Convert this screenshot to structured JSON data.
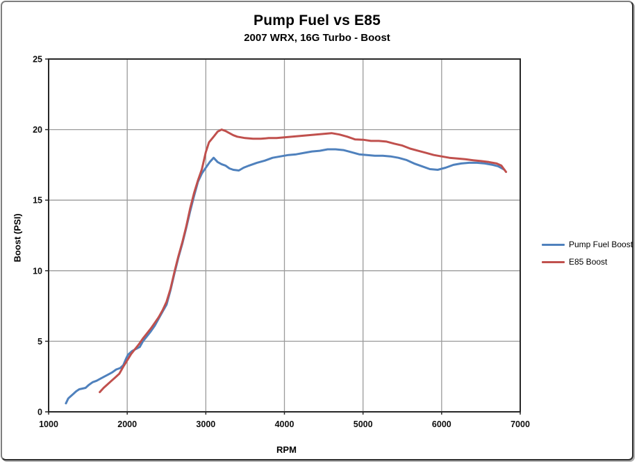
{
  "chart": {
    "title": "Pump Fuel vs E85",
    "subtitle": "2007 WRX, 16G Turbo -  Boost"
  },
  "chart_data": {
    "type": "line",
    "title": "Pump Fuel vs E85",
    "subtitle": "2007 WRX, 16G Turbo -  Boost",
    "xlabel": "RPM",
    "ylabel": "Boost (PSI)",
    "xlim": [
      1000,
      7000
    ],
    "ylim": [
      0,
      25
    ],
    "x_ticks": [
      1000,
      2000,
      3000,
      4000,
      5000,
      6000,
      7000
    ],
    "y_ticks": [
      0,
      5,
      10,
      15,
      20,
      25
    ],
    "grid": true,
    "legend_position": "right-outside",
    "gridline_color": "#9A9A9A",
    "axis_color": "#262626",
    "series": [
      {
        "name": "Pump Fuel Boost",
        "color": "#4F81BD",
        "points": [
          [
            1220,
            0.6
          ],
          [
            1250,
            0.95
          ],
          [
            1280,
            1.1
          ],
          [
            1310,
            1.25
          ],
          [
            1350,
            1.45
          ],
          [
            1390,
            1.6
          ],
          [
            1430,
            1.65
          ],
          [
            1470,
            1.7
          ],
          [
            1510,
            1.9
          ],
          [
            1560,
            2.1
          ],
          [
            1610,
            2.2
          ],
          [
            1660,
            2.35
          ],
          [
            1710,
            2.5
          ],
          [
            1760,
            2.65
          ],
          [
            1810,
            2.8
          ],
          [
            1860,
            3.0
          ],
          [
            1910,
            3.1
          ],
          [
            1950,
            3.3
          ],
          [
            1980,
            3.7
          ],
          [
            2010,
            4.05
          ],
          [
            2060,
            4.3
          ],
          [
            2110,
            4.45
          ],
          [
            2160,
            4.6
          ],
          [
            2200,
            5.0
          ],
          [
            2250,
            5.35
          ],
          [
            2300,
            5.7
          ],
          [
            2350,
            6.1
          ],
          [
            2400,
            6.6
          ],
          [
            2450,
            7.1
          ],
          [
            2500,
            7.6
          ],
          [
            2550,
            8.6
          ],
          [
            2600,
            9.8
          ],
          [
            2650,
            10.9
          ],
          [
            2700,
            11.9
          ],
          [
            2750,
            13.0
          ],
          [
            2800,
            14.2
          ],
          [
            2850,
            15.3
          ],
          [
            2900,
            16.3
          ],
          [
            2950,
            16.9
          ],
          [
            3000,
            17.3
          ],
          [
            3050,
            17.7
          ],
          [
            3100,
            18.0
          ],
          [
            3150,
            17.7
          ],
          [
            3200,
            17.55
          ],
          [
            3250,
            17.45
          ],
          [
            3300,
            17.25
          ],
          [
            3350,
            17.15
          ],
          [
            3420,
            17.1
          ],
          [
            3480,
            17.3
          ],
          [
            3550,
            17.45
          ],
          [
            3650,
            17.65
          ],
          [
            3750,
            17.8
          ],
          [
            3850,
            18.0
          ],
          [
            3950,
            18.1
          ],
          [
            4050,
            18.2
          ],
          [
            4150,
            18.25
          ],
          [
            4250,
            18.35
          ],
          [
            4350,
            18.45
          ],
          [
            4450,
            18.5
          ],
          [
            4550,
            18.6
          ],
          [
            4650,
            18.6
          ],
          [
            4750,
            18.55
          ],
          [
            4850,
            18.4
          ],
          [
            4950,
            18.25
          ],
          [
            5050,
            18.2
          ],
          [
            5150,
            18.15
          ],
          [
            5250,
            18.15
          ],
          [
            5350,
            18.1
          ],
          [
            5450,
            18.0
          ],
          [
            5550,
            17.85
          ],
          [
            5650,
            17.6
          ],
          [
            5750,
            17.4
          ],
          [
            5850,
            17.2
          ],
          [
            5950,
            17.15
          ],
          [
            6050,
            17.3
          ],
          [
            6150,
            17.5
          ],
          [
            6250,
            17.6
          ],
          [
            6350,
            17.65
          ],
          [
            6450,
            17.65
          ],
          [
            6550,
            17.6
          ],
          [
            6650,
            17.5
          ],
          [
            6720,
            17.4
          ],
          [
            6800,
            17.15
          ]
        ]
      },
      {
        "name": "E85 Boost",
        "color": "#C0504D",
        "points": [
          [
            1650,
            1.4
          ],
          [
            1700,
            1.7
          ],
          [
            1750,
            1.95
          ],
          [
            1800,
            2.2
          ],
          [
            1850,
            2.45
          ],
          [
            1900,
            2.7
          ],
          [
            1950,
            3.2
          ],
          [
            2000,
            3.65
          ],
          [
            2050,
            4.1
          ],
          [
            2100,
            4.45
          ],
          [
            2150,
            4.8
          ],
          [
            2200,
            5.2
          ],
          [
            2250,
            5.55
          ],
          [
            2300,
            5.9
          ],
          [
            2350,
            6.3
          ],
          [
            2400,
            6.7
          ],
          [
            2450,
            7.2
          ],
          [
            2500,
            7.8
          ],
          [
            2550,
            8.7
          ],
          [
            2600,
            9.9
          ],
          [
            2650,
            11.0
          ],
          [
            2700,
            12.0
          ],
          [
            2750,
            13.1
          ],
          [
            2800,
            14.4
          ],
          [
            2850,
            15.5
          ],
          [
            2900,
            16.4
          ],
          [
            2950,
            17.2
          ],
          [
            3000,
            18.4
          ],
          [
            3040,
            19.1
          ],
          [
            3100,
            19.5
          ],
          [
            3150,
            19.85
          ],
          [
            3200,
            20.0
          ],
          [
            3250,
            19.9
          ],
          [
            3300,
            19.75
          ],
          [
            3350,
            19.6
          ],
          [
            3400,
            19.5
          ],
          [
            3500,
            19.4
          ],
          [
            3600,
            19.35
          ],
          [
            3700,
            19.35
          ],
          [
            3800,
            19.4
          ],
          [
            3900,
            19.4
          ],
          [
            4000,
            19.45
          ],
          [
            4100,
            19.5
          ],
          [
            4200,
            19.55
          ],
          [
            4300,
            19.6
          ],
          [
            4400,
            19.65
          ],
          [
            4500,
            19.7
          ],
          [
            4600,
            19.75
          ],
          [
            4700,
            19.65
          ],
          [
            4800,
            19.5
          ],
          [
            4900,
            19.3
          ],
          [
            5000,
            19.28
          ],
          [
            5100,
            19.2
          ],
          [
            5200,
            19.2
          ],
          [
            5300,
            19.15
          ],
          [
            5400,
            19.0
          ],
          [
            5500,
            18.87
          ],
          [
            5600,
            18.65
          ],
          [
            5700,
            18.5
          ],
          [
            5800,
            18.35
          ],
          [
            5900,
            18.2
          ],
          [
            6000,
            18.1
          ],
          [
            6100,
            18.0
          ],
          [
            6200,
            17.95
          ],
          [
            6300,
            17.9
          ],
          [
            6400,
            17.83
          ],
          [
            6500,
            17.77
          ],
          [
            6600,
            17.7
          ],
          [
            6700,
            17.6
          ],
          [
            6760,
            17.45
          ],
          [
            6820,
            17.0
          ]
        ]
      }
    ]
  }
}
